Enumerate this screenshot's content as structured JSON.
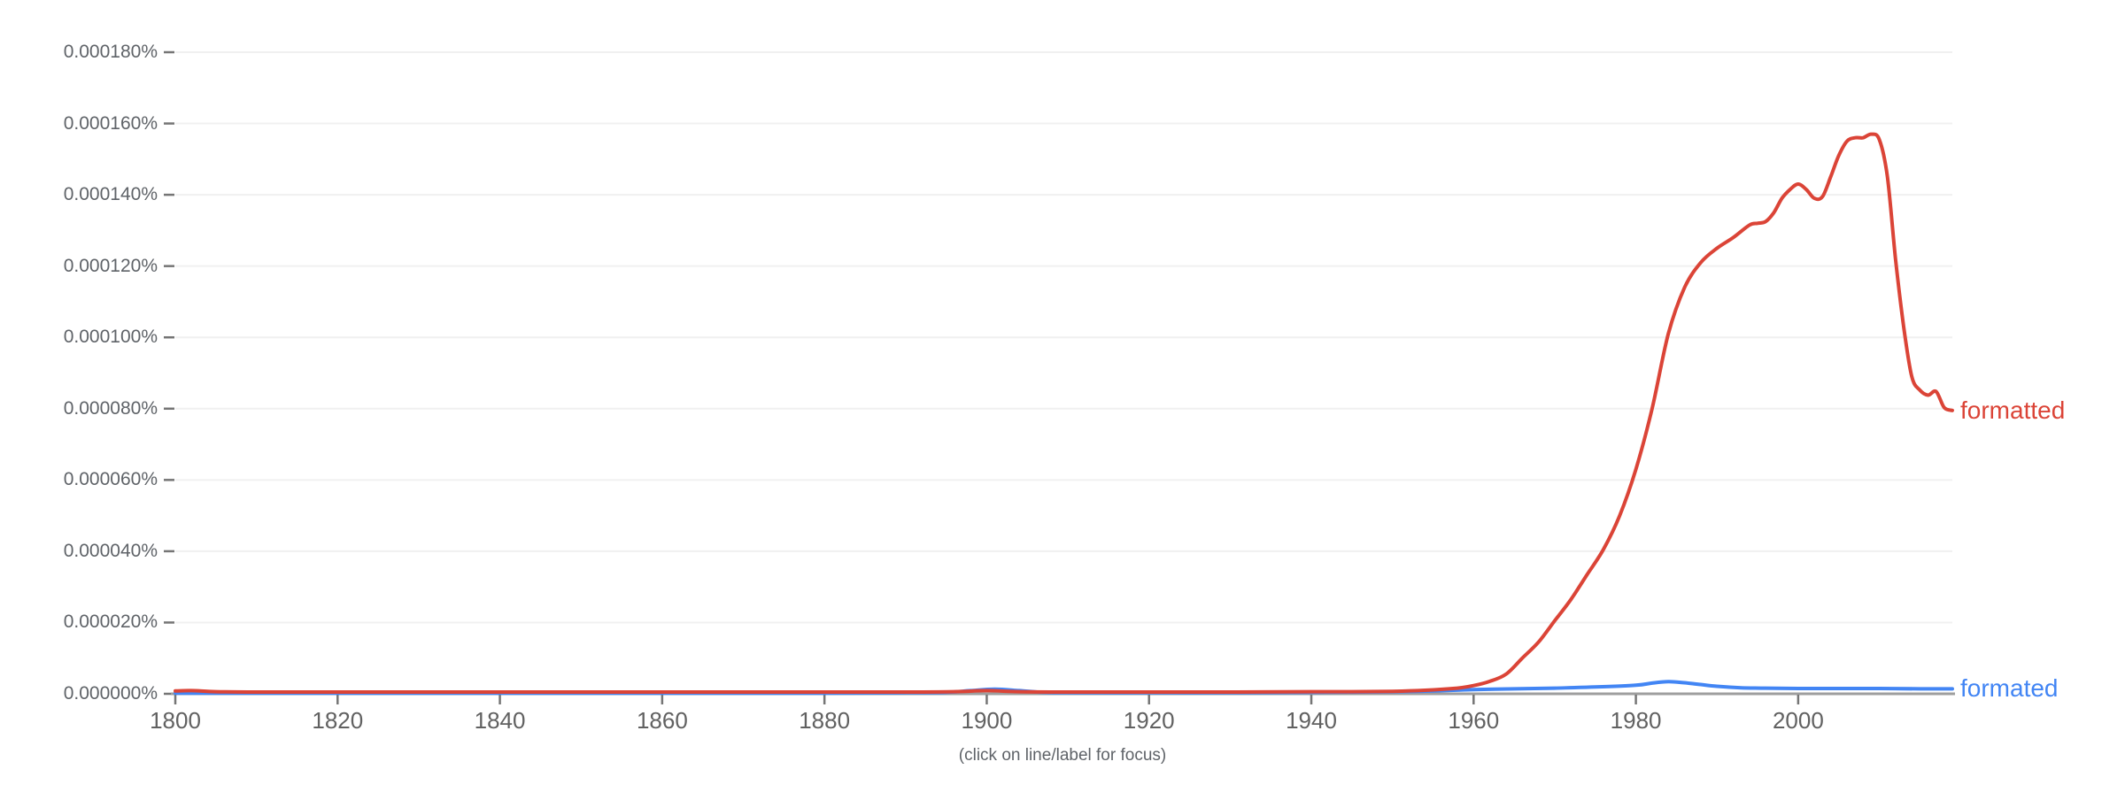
{
  "chart": {
    "caption": "(click on line/label for focus)",
    "style": {
      "background": "#ffffff",
      "axis_line_color": "#9e9e9e",
      "tick_color": "#757575",
      "gridline_color": "#f0f0f0",
      "axis_label_color": "#5f6368"
    }
  },
  "chart_data": {
    "type": "line",
    "title": "",
    "xlabel": "",
    "ylabel": "",
    "caption": "(click on line/label for focus)",
    "grid": "horizontal",
    "legend_position": "line-end-labels",
    "xlim": [
      1800,
      2019
    ],
    "ylim": [
      0,
      0.00018
    ],
    "x_ticks": [
      {
        "value": 1800,
        "label": "1800"
      },
      {
        "value": 1820,
        "label": "1820"
      },
      {
        "value": 1840,
        "label": "1840"
      },
      {
        "value": 1860,
        "label": "1860"
      },
      {
        "value": 1880,
        "label": "1880"
      },
      {
        "value": 1900,
        "label": "1900"
      },
      {
        "value": 1920,
        "label": "1920"
      },
      {
        "value": 1940,
        "label": "1940"
      },
      {
        "value": 1960,
        "label": "1960"
      },
      {
        "value": 1980,
        "label": "1980"
      },
      {
        "value": 2000,
        "label": "2000"
      }
    ],
    "y_ticks": [
      {
        "value": 0.0,
        "label": "0.000000%"
      },
      {
        "value": 2e-05,
        "label": "0.000020%"
      },
      {
        "value": 4e-05,
        "label": "0.000040%"
      },
      {
        "value": 6e-05,
        "label": "0.000060%"
      },
      {
        "value": 8e-05,
        "label": "0.000080%"
      },
      {
        "value": 0.0001,
        "label": "0.000100%"
      },
      {
        "value": 0.00012,
        "label": "0.000120%"
      },
      {
        "value": 0.00014,
        "label": "0.000140%"
      },
      {
        "value": 0.00016,
        "label": "0.000160%"
      },
      {
        "value": 0.00018,
        "label": "0.000180%"
      }
    ],
    "series": [
      {
        "name": "formated",
        "color": "#4285f4",
        "x": [
          1800,
          1810,
          1820,
          1830,
          1840,
          1850,
          1860,
          1870,
          1880,
          1890,
          1895,
          1898,
          1901,
          1904,
          1907,
          1910,
          1920,
          1930,
          1940,
          1950,
          1955,
          1960,
          1965,
          1970,
          1975,
          1980,
          1982,
          1984,
          1986,
          1988,
          1990,
          1993,
          1996,
          2000,
          2005,
          2010,
          2015,
          2019
        ],
        "y": [
          2e-07,
          2e-07,
          2e-07,
          2e-07,
          2e-07,
          2e-07,
          2e-07,
          2e-07,
          2e-07,
          3e-07,
          4e-07,
          9e-07,
          1.3e-06,
          9e-07,
          4e-07,
          3e-07,
          3e-07,
          3e-07,
          4e-07,
          6e-07,
          8e-07,
          1.2e-06,
          1.4e-06,
          1.6e-06,
          1.9e-06,
          2.4e-06,
          3e-06,
          3.4e-06,
          3.1e-06,
          2.6e-06,
          2.1e-06,
          1.7e-06,
          1.6e-06,
          1.5e-06,
          1.5e-06,
          1.5e-06,
          1.4e-06,
          1.4e-06
        ]
      },
      {
        "name": "formatted",
        "color": "#db4437",
        "x": [
          1800,
          1802,
          1805,
          1810,
          1820,
          1830,
          1840,
          1850,
          1860,
          1870,
          1880,
          1890,
          1896,
          1900,
          1904,
          1910,
          1920,
          1930,
          1940,
          1945,
          1950,
          1954,
          1958,
          1960,
          1962,
          1964,
          1966,
          1968,
          1970,
          1972,
          1974,
          1976,
          1978,
          1980,
          1982,
          1984,
          1986,
          1988,
          1990,
          1992,
          1994,
          1995,
          1996,
          1997,
          1998,
          1999,
          2000,
          2001,
          2002,
          2003,
          2004,
          2005,
          2006,
          2007,
          2008,
          2009,
          2010,
          2011,
          2012,
          2013,
          2014,
          2015,
          2016,
          2017,
          2018,
          2019
        ],
        "y": [
          8e-07,
          9e-07,
          6e-07,
          5e-07,
          5e-07,
          5e-07,
          5e-07,
          5e-07,
          5e-07,
          5e-07,
          5e-07,
          5e-07,
          6e-07,
          9e-07,
          6e-07,
          5e-07,
          5e-07,
          5e-07,
          6e-07,
          6e-07,
          7e-07,
          1e-06,
          1.6e-06,
          2.3e-06,
          3.5e-06,
          5.5e-06,
          1e-05,
          1.45e-05,
          2.05e-05,
          2.65e-05,
          3.35e-05,
          4.05e-05,
          5e-05,
          6.3e-05,
          8e-05,
          0.000101,
          0.000114,
          0.000121,
          0.000125,
          0.000128,
          0.0001315,
          0.000132,
          0.0001325,
          0.000135,
          0.000139,
          0.0001415,
          0.000143,
          0.0001415,
          0.000139,
          0.0001395,
          0.000145,
          0.000151,
          0.000155,
          0.000156,
          0.000156,
          0.000157,
          0.0001555,
          0.000145,
          0.000122,
          0.000103,
          8.9e-05,
          8.52e-05,
          8.38e-05,
          8.48e-05,
          8.03e-05,
          7.95e-05
        ]
      }
    ]
  }
}
